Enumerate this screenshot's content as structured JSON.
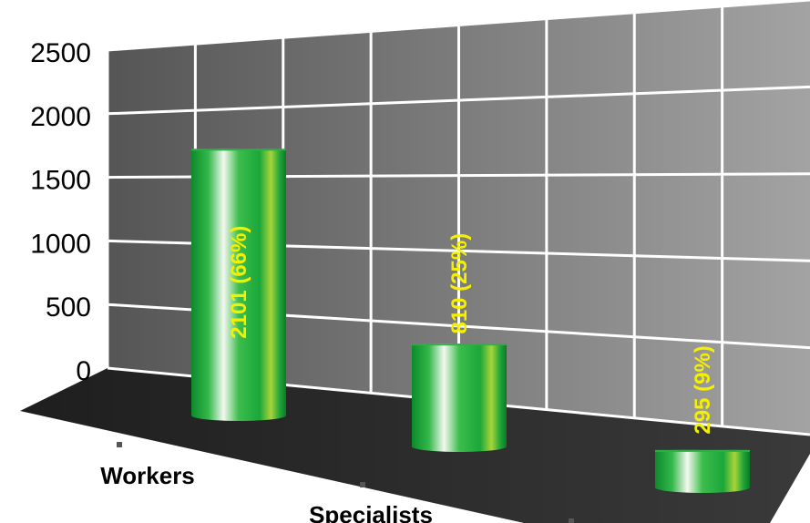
{
  "chart_data": {
    "type": "bar",
    "title": "",
    "xlabel": "",
    "ylabel": "",
    "ylim": [
      0,
      2500
    ],
    "yticks": [
      "0",
      "500",
      "1000",
      "1500",
      "2000",
      "2500"
    ],
    "categories": [
      "Workers",
      "Specialists",
      ""
    ],
    "values": [
      2101,
      810,
      295
    ],
    "data_labels": [
      "2101 (66%)",
      "810 (25%)",
      "295 (9%)"
    ],
    "grid": true,
    "colors": {
      "bar_dark": "#0e8a2a",
      "bar_mid": "#22b43a",
      "bar_light": "#f2f7ee",
      "accent": "#a6d13a",
      "label": "#f4f000",
      "wall_light": "#5a5a5a",
      "wall_dark": "#9c9c9c",
      "floor": "#2c2c2c"
    }
  }
}
